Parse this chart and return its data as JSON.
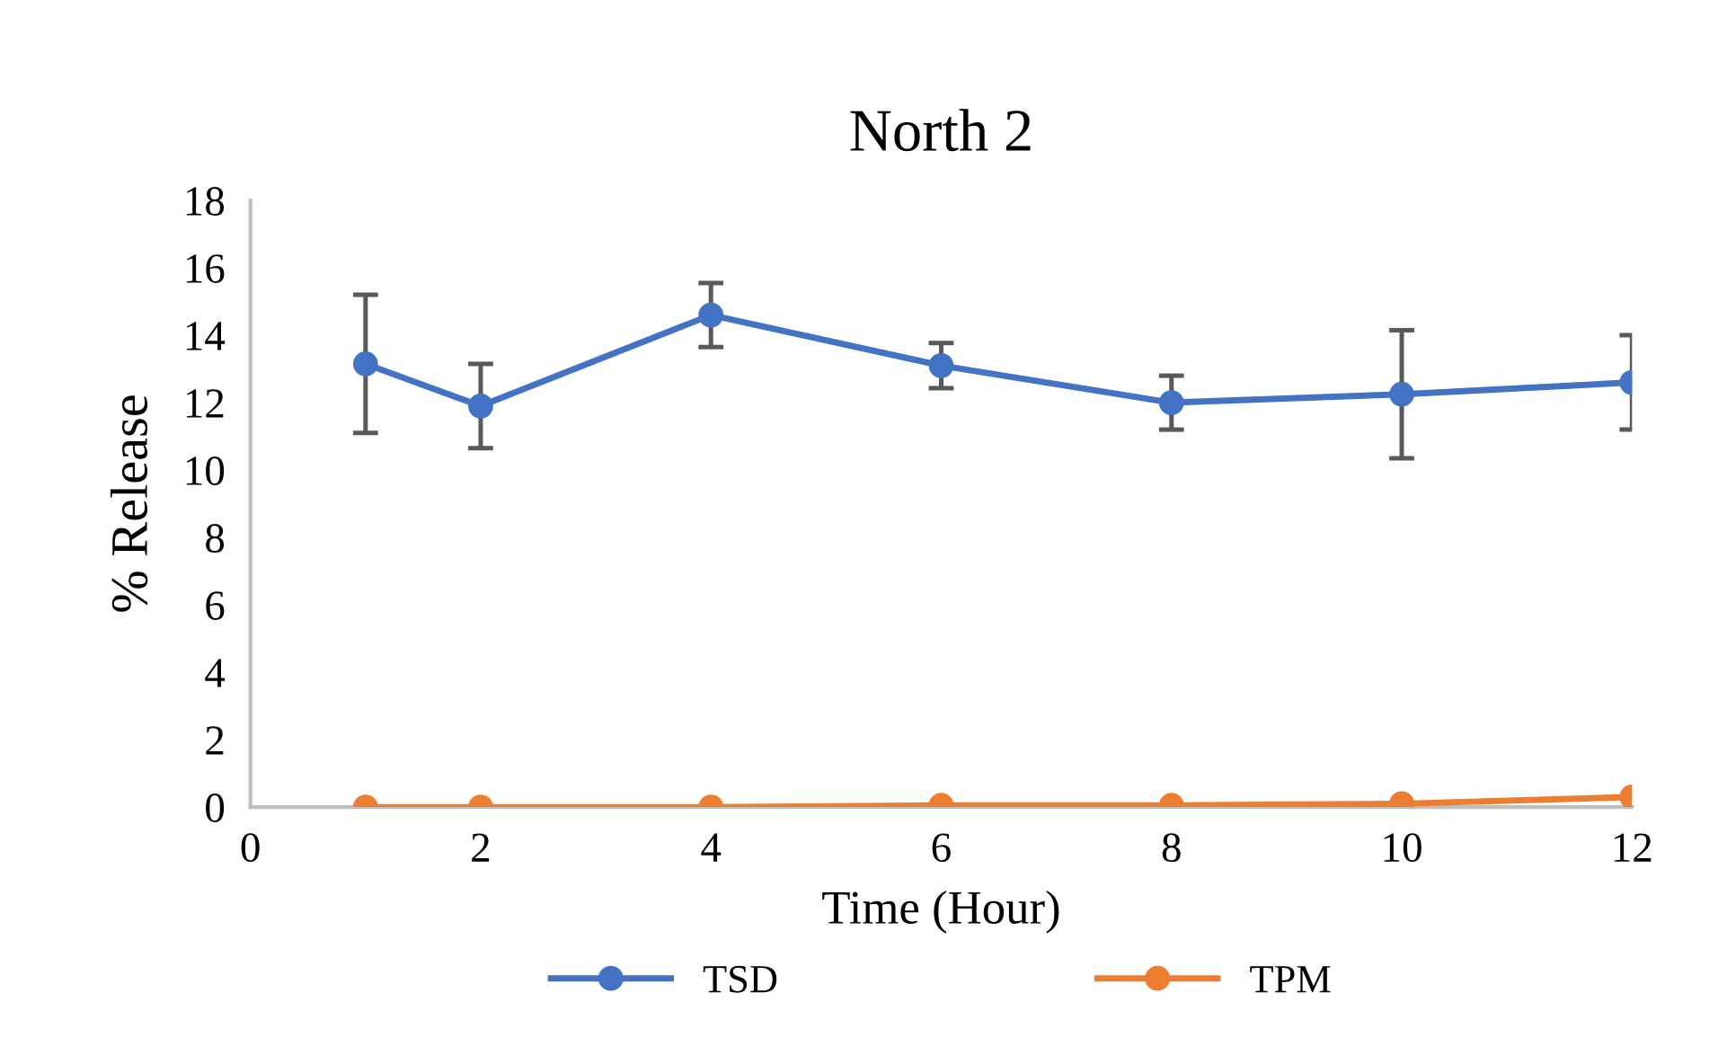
{
  "chart_data": {
    "type": "line",
    "title": "North 2",
    "xlabel": "Time (Hour)",
    "ylabel": "% Release",
    "x": [
      1,
      2,
      4,
      6,
      8,
      10,
      12
    ],
    "series": [
      {
        "name": "TSD",
        "color": "#4472c4",
        "values": [
          13.15,
          11.9,
          14.6,
          13.1,
          12.0,
          12.25,
          12.6
        ],
        "errors": [
          2.05,
          1.25,
          0.95,
          0.67,
          0.8,
          1.9,
          1.4
        ]
      },
      {
        "name": "TPM",
        "color": "#ed7d31",
        "values": [
          0,
          0,
          0,
          0.05,
          0.05,
          0.1,
          0.3
        ]
      }
    ],
    "xlim": [
      0,
      12
    ],
    "xticks": [
      0,
      2,
      4,
      6,
      8,
      10,
      12
    ],
    "ylim": [
      0,
      18
    ],
    "yticks": [
      0,
      2,
      4,
      6,
      8,
      10,
      12,
      14,
      16,
      18
    ],
    "grid": false,
    "legend": "bottom",
    "marker": "circle",
    "line_style": "solid"
  }
}
